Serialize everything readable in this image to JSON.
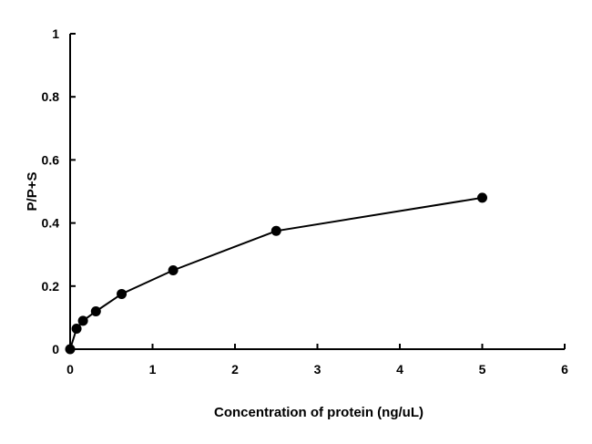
{
  "chart_data": {
    "type": "line",
    "title": "",
    "xlabel": "Concentration of protein (ng/uL)",
    "ylabel": "P/P+S",
    "xlim": [
      0,
      6
    ],
    "ylim": [
      0,
      1
    ],
    "x_ticks": [
      0,
      1,
      2,
      3,
      4,
      5,
      6
    ],
    "y_ticks": [
      0,
      0.2,
      0.4,
      0.6,
      0.8,
      1
    ],
    "y_tick_labels": [
      "0",
      "0.2",
      "0.4",
      "0.6",
      "0.8",
      "1"
    ],
    "grid": false,
    "series": [
      {
        "x": [
          0,
          0.078,
          0.156,
          0.3125,
          0.625,
          1.25,
          2.5,
          5
        ],
        "y": [
          0,
          0.065,
          0.09,
          0.12,
          0.175,
          0.25,
          0.375,
          0.48
        ],
        "color": "#000000",
        "marker": "circle"
      }
    ]
  }
}
